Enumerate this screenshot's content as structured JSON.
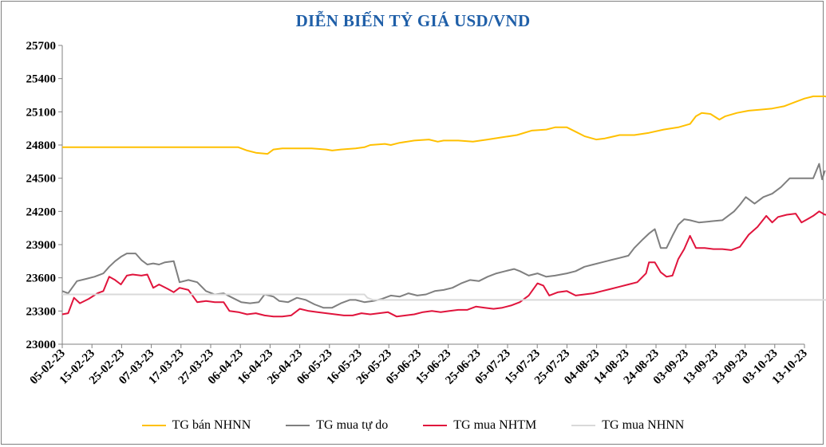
{
  "chart_data": {
    "type": "line",
    "title": "DIỄN BIẾN TỶ GIÁ USD/VND",
    "xlabel": "",
    "ylabel": "",
    "ylim": [
      23000,
      25700
    ],
    "yticks": [
      23000,
      23300,
      23600,
      23900,
      24200,
      24500,
      24800,
      25100,
      25400,
      25700
    ],
    "x_tick_labels": [
      "05-02-23",
      "15-02-23",
      "25-02-23",
      "07-03-23",
      "17-03-23",
      "27-03-23",
      "06-04-23",
      "16-04-23",
      "26-04-23",
      "06-05-23",
      "16-05-23",
      "26-05-23",
      "05-06-23",
      "15-06-23",
      "25-06-23",
      "05-07-23",
      "15-07-23",
      "25-07-23",
      "04-08-23",
      "14-08-23",
      "24-08-23",
      "03-09-23",
      "13-09-23",
      "23-09-23",
      "03-10-23",
      "13-10-23"
    ],
    "x_start_day": 0,
    "x_end_day": 253,
    "grid": false,
    "legend": "bottom",
    "series": [
      {
        "name": "TG bán NHNN",
        "color": "#ffc000",
        "points": [
          [
            0,
            24780
          ],
          [
            60,
            24780
          ],
          [
            63,
            24750
          ],
          [
            66,
            24730
          ],
          [
            70,
            24720
          ],
          [
            72,
            24760
          ],
          [
            75,
            24770
          ],
          [
            80,
            24770
          ],
          [
            85,
            24770
          ],
          [
            90,
            24760
          ],
          [
            92,
            24750
          ],
          [
            95,
            24760
          ],
          [
            100,
            24770
          ],
          [
            103,
            24780
          ],
          [
            105,
            24800
          ],
          [
            110,
            24810
          ],
          [
            112,
            24800
          ],
          [
            115,
            24820
          ],
          [
            120,
            24840
          ],
          [
            125,
            24850
          ],
          [
            128,
            24830
          ],
          [
            130,
            24840
          ],
          [
            135,
            24840
          ],
          [
            140,
            24830
          ],
          [
            145,
            24850
          ],
          [
            150,
            24870
          ],
          [
            155,
            24890
          ],
          [
            160,
            24930
          ],
          [
            165,
            24940
          ],
          [
            168,
            24960
          ],
          [
            172,
            24960
          ],
          [
            175,
            24920
          ],
          [
            178,
            24880
          ],
          [
            182,
            24850
          ],
          [
            185,
            24860
          ],
          [
            190,
            24890
          ],
          [
            195,
            24890
          ],
          [
            200,
            24910
          ],
          [
            205,
            24940
          ],
          [
            210,
            24960
          ],
          [
            214,
            24990
          ],
          [
            216,
            25060
          ],
          [
            218,
            25090
          ],
          [
            221,
            25080
          ],
          [
            224,
            25030
          ],
          [
            226,
            25060
          ],
          [
            230,
            25090
          ],
          [
            234,
            25110
          ],
          [
            238,
            25120
          ],
          [
            242,
            25130
          ],
          [
            246,
            25150
          ],
          [
            250,
            25190
          ],
          [
            253,
            25220
          ],
          [
            256,
            25240
          ],
          [
            260,
            25240
          ],
          [
            263,
            25220
          ],
          [
            266,
            25230
          ]
        ]
      },
      {
        "name": "TG mua tự do",
        "color": "#7f7f7f",
        "points": [
          [
            0,
            23480
          ],
          [
            2,
            23460
          ],
          [
            5,
            23570
          ],
          [
            8,
            23590
          ],
          [
            11,
            23610
          ],
          [
            14,
            23640
          ],
          [
            16,
            23700
          ],
          [
            18,
            23750
          ],
          [
            20,
            23790
          ],
          [
            22,
            23820
          ],
          [
            25,
            23820
          ],
          [
            27,
            23760
          ],
          [
            29,
            23720
          ],
          [
            31,
            23730
          ],
          [
            33,
            23720
          ],
          [
            35,
            23740
          ],
          [
            38,
            23750
          ],
          [
            40,
            23560
          ],
          [
            43,
            23580
          ],
          [
            46,
            23560
          ],
          [
            49,
            23480
          ],
          [
            52,
            23450
          ],
          [
            55,
            23460
          ],
          [
            58,
            23420
          ],
          [
            61,
            23380
          ],
          [
            64,
            23370
          ],
          [
            67,
            23380
          ],
          [
            69,
            23450
          ],
          [
            72,
            23430
          ],
          [
            74,
            23390
          ],
          [
            77,
            23380
          ],
          [
            80,
            23420
          ],
          [
            83,
            23400
          ],
          [
            86,
            23360
          ],
          [
            89,
            23330
          ],
          [
            92,
            23330
          ],
          [
            95,
            23370
          ],
          [
            98,
            23400
          ],
          [
            100,
            23400
          ],
          [
            103,
            23380
          ],
          [
            106,
            23390
          ],
          [
            109,
            23410
          ],
          [
            112,
            23440
          ],
          [
            115,
            23430
          ],
          [
            118,
            23460
          ],
          [
            121,
            23440
          ],
          [
            124,
            23450
          ],
          [
            127,
            23480
          ],
          [
            130,
            23490
          ],
          [
            133,
            23510
          ],
          [
            136,
            23550
          ],
          [
            139,
            23580
          ],
          [
            142,
            23570
          ],
          [
            145,
            23610
          ],
          [
            148,
            23640
          ],
          [
            151,
            23660
          ],
          [
            154,
            23680
          ],
          [
            156,
            23660
          ],
          [
            159,
            23620
          ],
          [
            162,
            23640
          ],
          [
            165,
            23610
          ],
          [
            168,
            23620
          ],
          [
            172,
            23640
          ],
          [
            175,
            23660
          ],
          [
            178,
            23700
          ],
          [
            181,
            23720
          ],
          [
            184,
            23740
          ],
          [
            187,
            23760
          ],
          [
            190,
            23780
          ],
          [
            193,
            23800
          ],
          [
            195,
            23870
          ],
          [
            198,
            23950
          ],
          [
            200,
            24000
          ],
          [
            202,
            24040
          ],
          [
            204,
            23870
          ],
          [
            206,
            23870
          ],
          [
            208,
            23980
          ],
          [
            210,
            24080
          ],
          [
            212,
            24130
          ],
          [
            214,
            24120
          ],
          [
            217,
            24100
          ],
          [
            221,
            24110
          ],
          [
            225,
            24120
          ],
          [
            229,
            24200
          ],
          [
            231,
            24260
          ],
          [
            233,
            24330
          ],
          [
            236,
            24270
          ],
          [
            239,
            24330
          ],
          [
            242,
            24360
          ],
          [
            245,
            24420
          ],
          [
            248,
            24500
          ],
          [
            251,
            24500
          ],
          [
            254,
            24500
          ],
          [
            256,
            24500
          ],
          [
            258,
            24630
          ],
          [
            259,
            24490
          ],
          [
            260,
            24570
          ]
        ]
      },
      {
        "name": "TG mua NHTM",
        "color": "#e0143c",
        "points": [
          [
            0,
            23270
          ],
          [
            2,
            23280
          ],
          [
            4,
            23420
          ],
          [
            6,
            23370
          ],
          [
            9,
            23410
          ],
          [
            12,
            23460
          ],
          [
            14,
            23480
          ],
          [
            16,
            23610
          ],
          [
            18,
            23580
          ],
          [
            20,
            23540
          ],
          [
            22,
            23620
          ],
          [
            24,
            23630
          ],
          [
            27,
            23620
          ],
          [
            29,
            23630
          ],
          [
            31,
            23510
          ],
          [
            33,
            23540
          ],
          [
            36,
            23500
          ],
          [
            38,
            23470
          ],
          [
            40,
            23510
          ],
          [
            43,
            23490
          ],
          [
            46,
            23380
          ],
          [
            49,
            23390
          ],
          [
            52,
            23380
          ],
          [
            55,
            23380
          ],
          [
            57,
            23300
          ],
          [
            60,
            23290
          ],
          [
            63,
            23270
          ],
          [
            66,
            23280
          ],
          [
            69,
            23260
          ],
          [
            72,
            23250
          ],
          [
            75,
            23250
          ],
          [
            78,
            23260
          ],
          [
            81,
            23320
          ],
          [
            84,
            23300
          ],
          [
            87,
            23290
          ],
          [
            90,
            23280
          ],
          [
            93,
            23270
          ],
          [
            96,
            23260
          ],
          [
            99,
            23260
          ],
          [
            102,
            23280
          ],
          [
            105,
            23270
          ],
          [
            108,
            23280
          ],
          [
            111,
            23290
          ],
          [
            114,
            23250
          ],
          [
            117,
            23260
          ],
          [
            120,
            23270
          ],
          [
            123,
            23290
          ],
          [
            126,
            23300
          ],
          [
            129,
            23290
          ],
          [
            132,
            23300
          ],
          [
            135,
            23310
          ],
          [
            138,
            23310
          ],
          [
            141,
            23340
          ],
          [
            144,
            23330
          ],
          [
            147,
            23320
          ],
          [
            150,
            23330
          ],
          [
            153,
            23350
          ],
          [
            156,
            23380
          ],
          [
            159,
            23440
          ],
          [
            162,
            23550
          ],
          [
            164,
            23530
          ],
          [
            166,
            23440
          ],
          [
            169,
            23470
          ],
          [
            172,
            23480
          ],
          [
            175,
            23440
          ],
          [
            178,
            23450
          ],
          [
            181,
            23460
          ],
          [
            184,
            23480
          ],
          [
            187,
            23500
          ],
          [
            190,
            23520
          ],
          [
            193,
            23540
          ],
          [
            196,
            23560
          ],
          [
            199,
            23640
          ],
          [
            200,
            23740
          ],
          [
            202,
            23740
          ],
          [
            204,
            23650
          ],
          [
            206,
            23610
          ],
          [
            208,
            23620
          ],
          [
            210,
            23770
          ],
          [
            212,
            23860
          ],
          [
            214,
            23980
          ],
          [
            216,
            23870
          ],
          [
            219,
            23870
          ],
          [
            222,
            23860
          ],
          [
            225,
            23860
          ],
          [
            228,
            23850
          ],
          [
            231,
            23880
          ],
          [
            234,
            23990
          ],
          [
            237,
            24060
          ],
          [
            240,
            24160
          ],
          [
            242,
            24100
          ],
          [
            244,
            24150
          ],
          [
            247,
            24170
          ],
          [
            250,
            24180
          ],
          [
            252,
            24100
          ],
          [
            254,
            24130
          ],
          [
            256,
            24160
          ],
          [
            258,
            24200
          ],
          [
            260,
            24170
          ],
          [
            263,
            24180
          ],
          [
            265,
            24230
          ],
          [
            268,
            24260
          ]
        ]
      },
      {
        "name": "TG mua NHNN",
        "color": "#d9d9d9",
        "points": [
          [
            0,
            23450
          ],
          [
            103,
            23450
          ],
          [
            104,
            23420
          ],
          [
            106,
            23400
          ],
          [
            268,
            23400
          ]
        ]
      }
    ]
  }
}
